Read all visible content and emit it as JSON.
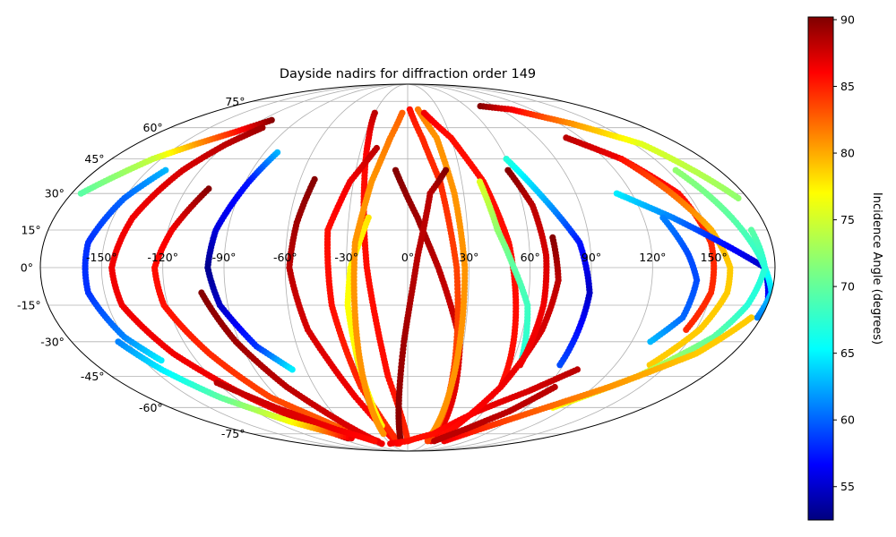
{
  "chart_data": {
    "type": "scatter",
    "projection": "mollweide",
    "title": "Dayside nadirs for diffraction order 149",
    "lon_ticks": [
      -150,
      -120,
      -90,
      -60,
      -30,
      0,
      30,
      60,
      90,
      120,
      150
    ],
    "lon_tick_labels": [
      "-150°",
      "-120°",
      "-90°",
      "-60°",
      "-30°",
      "0°",
      "30°",
      "60°",
      "90°",
      "120°",
      "150°"
    ],
    "lat_ticks": [
      -75,
      -60,
      -45,
      -30,
      -15,
      0,
      15,
      30,
      45,
      60,
      75
    ],
    "lat_tick_labels": [
      "-75°",
      "-60°",
      "-45°",
      "-30°",
      "-15°",
      "0°",
      "15°",
      "30°",
      "45°",
      "60°",
      "75°"
    ],
    "grid": true,
    "colorbar": {
      "label": "Incidence Angle (degrees)",
      "colormap": "jet",
      "range": [
        52.5,
        90.2
      ],
      "ticks": [
        55,
        60,
        65,
        70,
        75,
        80,
        85,
        90
      ]
    },
    "tracks": [
      {
        "lon": [
          -112,
          -125,
          -140,
          -155,
          -175
        ],
        "lat": [
          64,
          58,
          52,
          45,
          30
        ],
        "c": [
          90,
          85,
          80,
          74,
          70
        ]
      },
      {
        "lon": [
          -140,
          -150,
          -158,
          -158,
          -150,
          -140
        ],
        "lat": [
          40,
          28,
          10,
          -10,
          -28,
          -38
        ],
        "c": [
          64,
          61,
          59,
          59,
          62,
          66
        ]
      },
      {
        "lon": [
          -110,
          -120,
          -130,
          -140,
          -145,
          -143,
          -130,
          -110,
          -80
        ],
        "lat": [
          60,
          52,
          40,
          20,
          0,
          -15,
          -35,
          -55,
          -78
        ],
        "c": [
          89,
          88,
          87,
          86,
          86,
          86,
          86,
          86,
          88
        ]
      },
      {
        "lon": [
          -108,
          -118,
          -124,
          -122,
          -110,
          -95,
          -70,
          -45
        ],
        "lat": [
          32,
          15,
          0,
          -15,
          -35,
          -55,
          -70,
          -80
        ],
        "c": [
          90,
          86,
          85,
          85,
          84,
          83,
          82,
          85
        ]
      },
      {
        "lon": [
          -102,
          -92,
          -78,
          -60,
          -45
        ],
        "lat": [
          -10,
          -30,
          -50,
          -68,
          -82
        ],
        "c": [
          90,
          89,
          88,
          87,
          86
        ]
      },
      {
        "lon": [
          -82,
          -88,
          -96,
          -98,
          -94,
          -82,
          -68
        ],
        "lat": [
          48,
          35,
          15,
          0,
          -15,
          -32,
          -42
        ],
        "c": [
          64,
          58,
          56,
          53,
          55,
          59,
          66
        ]
      },
      {
        "lon": [
          -52,
          -56,
          -58,
          -52,
          -36,
          -18
        ],
        "lat": [
          36,
          18,
          0,
          -25,
          -55,
          -82
        ],
        "c": [
          90,
          89,
          88,
          87,
          86,
          85
        ]
      },
      {
        "lon": [
          -30,
          -27,
          -24,
          -20,
          -12,
          0
        ],
        "lat": [
          68,
          55,
          35,
          0,
          -45,
          -80
        ],
        "c": [
          88,
          86,
          85,
          85,
          85,
          84
        ]
      },
      {
        "lon": [
          -20,
          -32,
          -40,
          -38,
          -30,
          -15
        ],
        "lat": [
          50,
          35,
          15,
          -15,
          -50,
          -82
        ],
        "c": [
          88,
          86,
          85,
          85,
          84,
          84
        ]
      },
      {
        "lon": [
          -20,
          -28,
          -30,
          -28,
          -25
        ],
        "lat": [
          20,
          0,
          -15,
          -40,
          -70
        ],
        "c": [
          77,
          76,
          76,
          76,
          76
        ]
      },
      {
        "lon": [
          -5,
          -12,
          -20,
          -26,
          -28
        ],
        "lat": [
          68,
          55,
          35,
          10,
          -75
        ],
        "c": [
          82,
          81,
          80,
          80,
          80
        ]
      },
      {
        "lon": [
          -7,
          5,
          15,
          28,
          35
        ],
        "lat": [
          40,
          20,
          0,
          -30,
          -80
        ],
        "c": [
          90,
          89,
          88,
          87,
          86
        ]
      },
      {
        "lon": [
          2,
          10,
          18,
          24,
          30
        ],
        "lat": [
          70,
          55,
          35,
          0,
          -80
        ],
        "c": [
          85,
          84,
          84,
          83,
          83
        ]
      },
      {
        "lon": [
          10,
          20,
          25,
          28,
          28
        ],
        "lat": [
          70,
          55,
          30,
          0,
          -75
        ],
        "c": [
          81,
          80,
          80,
          80,
          80
        ]
      },
      {
        "lon": [
          -10,
          -2,
          5,
          12,
          22
        ],
        "lat": [
          -80,
          -30,
          5,
          30,
          40
        ],
        "c": [
          90,
          89,
          88,
          88,
          90
        ]
      },
      {
        "lon": [
          15,
          30,
          42,
          50,
          55,
          60
        ],
        "lat": [
          68,
          55,
          35,
          10,
          -20,
          -50
        ],
        "c": [
          86,
          85,
          85,
          85,
          85,
          85
        ]
      },
      {
        "lon": [
          -30,
          0,
          30,
          55,
          80,
          100
        ],
        "lat": [
          -82,
          -80,
          -75,
          -62,
          -52,
          -42
        ],
        "c": [
          86,
          85,
          85,
          86,
          87,
          88
        ]
      },
      {
        "lon": [
          40,
          45,
          52,
          60,
          65
        ],
        "lat": [
          35,
          15,
          0,
          -15,
          -40
        ],
        "c": [
          75,
          72,
          70,
          69,
          68
        ]
      },
      {
        "lon": [
          72,
          74,
          70,
          60,
          42
        ],
        "lat": [
          12,
          -5,
          -25,
          -50,
          -78
        ],
        "c": [
          90,
          88,
          87,
          86,
          85
        ]
      },
      {
        "lon": [
          60,
          72,
          85,
          90,
          88
        ],
        "lat": [
          45,
          28,
          10,
          -10,
          -40
        ],
        "c": [
          68,
          64,
          58,
          55,
          60
        ]
      },
      {
        "lon": [
          58,
          65,
          68,
          68,
          65
        ],
        "lat": [
          40,
          25,
          5,
          -15,
          -40
        ],
        "c": [
          90,
          88,
          87,
          86,
          86
        ]
      },
      {
        "lon": [
          75,
          100,
          130,
          155,
          175
        ],
        "lat": [
          72,
          70,
          62,
          52,
          28
        ],
        "c": [
          90,
          86,
          80,
          75,
          72
        ]
      },
      {
        "lon": [
          110,
          130,
          145,
          150,
          150,
          145
        ],
        "lat": [
          55,
          45,
          30,
          10,
          -10,
          -25
        ],
        "c": [
          88,
          86,
          85,
          84,
          84,
          84
        ]
      },
      {
        "lon": [
          130,
          140,
          152,
          158,
          158,
          152,
          140
        ],
        "lat": [
          45,
          32,
          15,
          0,
          -10,
          -25,
          -40
        ],
        "c": [
          85,
          82,
          79,
          78,
          78,
          78,
          78
        ]
      },
      {
        "lon": [
          112,
          135,
          155,
          175,
          180
        ],
        "lat": [
          30,
          20,
          10,
          0,
          -15
        ],
        "c": [
          66,
          62,
          58,
          55,
          58
        ]
      },
      {
        "lon": [
          130,
          138,
          142,
          140,
          130
        ],
        "lat": [
          20,
          5,
          -5,
          -20,
          -30
        ],
        "c": [
          62,
          60,
          60,
          61,
          64
        ]
      },
      {
        "lon": [
          155,
          165,
          175,
          180,
          178
        ],
        "lat": [
          40,
          20,
          0,
          -10,
          -20
        ],
        "c": [
          72,
          70,
          68,
          65,
          62
        ]
      },
      {
        "lon": [
          172,
          175,
          170,
          162,
          140,
          110
        ],
        "lat": [
          15,
          0,
          -15,
          -28,
          -45,
          -60
        ],
        "c": [
          70,
          68,
          68,
          70,
          74,
          76
        ]
      },
      {
        "lon": [
          175,
          160,
          130,
          100,
          75,
          55
        ],
        "lat": [
          -20,
          -35,
          -50,
          -62,
          -72,
          -80
        ],
        "c": [
          78,
          78,
          80,
          82,
          84,
          86
        ]
      },
      {
        "lon": [
          95,
          80,
          60,
          40
        ],
        "lat": [
          -50,
          -62,
          -72,
          -80
        ],
        "c": [
          88,
          88,
          88,
          88
        ]
      },
      {
        "lon": [
          -155,
          -145,
          -130,
          -105,
          -75
        ],
        "lat": [
          -30,
          -42,
          -55,
          -68,
          -78
        ],
        "c": [
          62,
          66,
          70,
          76,
          86
        ]
      },
      {
        "lon": [
          -120,
          -100,
          -75,
          -50
        ],
        "lat": [
          -48,
          -60,
          -72,
          -80
        ],
        "c": [
          88,
          87,
          86,
          85
        ]
      }
    ]
  }
}
